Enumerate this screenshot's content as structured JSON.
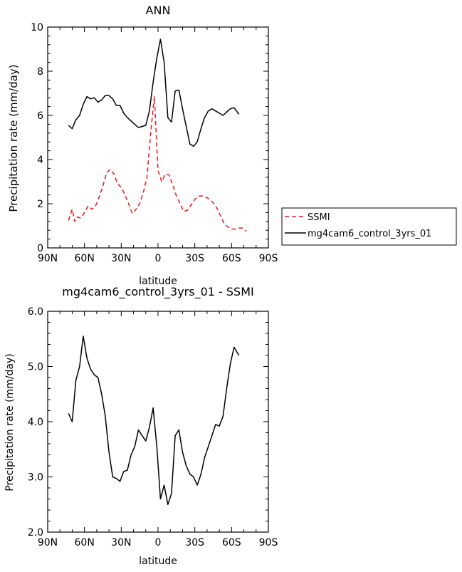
{
  "chart_data": [
    {
      "type": "line",
      "title": "ANN",
      "xlabel": "latitude",
      "ylabel": "Precipitation rate (mm/day)",
      "xlim": [
        90,
        -90
      ],
      "ylim": [
        0,
        10
      ],
      "x_ticks": [
        90,
        60,
        30,
        0,
        -30,
        -60,
        -90
      ],
      "x_tick_labels": [
        "90N",
        "60N",
        "30N",
        "0",
        "30S",
        "60S",
        "90S"
      ],
      "y_ticks": [
        0,
        2,
        4,
        6,
        8,
        10
      ],
      "y_tick_labels": [
        "0",
        "2",
        "4",
        "6",
        "8",
        "10"
      ],
      "legend": [
        "SSMI",
        "mg4cam6_control_3yrs_01"
      ],
      "series": [
        {
          "name": "SSMI",
          "color": "#e8191c",
          "dash": true,
          "x": [
            73,
            70,
            68,
            66,
            63,
            60,
            57,
            54,
            51,
            48,
            45,
            42,
            39,
            36,
            33,
            30,
            27,
            24,
            21,
            18,
            15,
            12,
            9,
            6,
            3,
            0,
            -3,
            -6,
            -9,
            -12,
            -15,
            -18,
            -21,
            -24,
            -27,
            -30,
            -33,
            -36,
            -39,
            -42,
            -45,
            -48,
            -51,
            -54,
            -57,
            -60,
            -63,
            -66,
            -69,
            -72
          ],
          "values": [
            1.25,
            1.75,
            1.2,
            1.4,
            1.35,
            1.6,
            1.9,
            1.75,
            1.9,
            2.3,
            2.8,
            3.4,
            3.55,
            3.35,
            2.9,
            2.75,
            2.4,
            2.0,
            1.55,
            1.75,
            2.0,
            2.5,
            3.2,
            5.2,
            6.85,
            3.5,
            3.0,
            3.35,
            3.3,
            2.85,
            2.35,
            2.0,
            1.65,
            1.7,
            1.95,
            2.2,
            2.35,
            2.35,
            2.3,
            2.2,
            2.05,
            1.8,
            1.45,
            1.1,
            0.95,
            0.85,
            0.85,
            0.9,
            0.9,
            0.75
          ]
        },
        {
          "name": "mg4cam6_control_3yrs_01",
          "color": "#000000",
          "dash": false,
          "x": [
            73,
            70,
            67,
            64,
            61,
            58,
            55,
            52,
            49,
            46,
            43,
            40,
            37,
            34,
            31,
            28,
            25,
            22,
            19,
            16,
            13,
            10,
            7,
            4,
            1,
            -2,
            -5,
            -8,
            -11,
            -14,
            -17,
            -20,
            -23,
            -26,
            -29,
            -32,
            -35,
            -38,
            -41,
            -44,
            -47,
            -50,
            -53,
            -56,
            -59,
            -62,
            -66
          ],
          "values": [
            5.55,
            5.4,
            5.8,
            6.0,
            6.5,
            6.85,
            6.75,
            6.8,
            6.6,
            6.7,
            6.9,
            6.9,
            6.75,
            6.45,
            6.45,
            6.1,
            5.9,
            5.75,
            5.6,
            5.45,
            5.5,
            5.55,
            6.2,
            7.5,
            8.6,
            9.45,
            8.4,
            5.9,
            5.7,
            7.1,
            7.15,
            6.3,
            5.5,
            4.7,
            4.6,
            4.8,
            5.4,
            5.9,
            6.2,
            6.3,
            6.2,
            6.1,
            6.0,
            6.15,
            6.3,
            6.35,
            6.05
          ]
        }
      ]
    },
    {
      "type": "line",
      "title": "mg4cam6_control_3yrs_01 - SSMI",
      "xlabel": "latitude",
      "ylabel": "Precipitation rate (mm/day)",
      "xlim": [
        90,
        -90
      ],
      "ylim": [
        2.0,
        6.0
      ],
      "x_ticks": [
        90,
        60,
        30,
        0,
        -30,
        -60,
        -90
      ],
      "x_tick_labels": [
        "90N",
        "60N",
        "30N",
        "0",
        "30S",
        "60S",
        "90S"
      ],
      "y_ticks": [
        2,
        3,
        4,
        5,
        6
      ],
      "y_tick_labels": [
        "2.0",
        "3.0",
        "4.0",
        "5.0",
        "6.0"
      ],
      "series": [
        {
          "name": "mg4cam6_control_3yrs_01 - SSMI",
          "color": "#000000",
          "dash": false,
          "x": [
            73,
            70,
            67,
            64,
            61,
            58,
            55,
            52,
            49,
            46,
            43,
            40,
            37,
            34,
            31,
            28,
            25,
            22,
            19,
            16,
            13,
            10,
            7,
            4,
            1,
            -2,
            -5,
            -8,
            -11,
            -14,
            -17,
            -20,
            -23,
            -26,
            -29,
            -32,
            -35,
            -38,
            -41,
            -44,
            -47,
            -50,
            -53,
            -56,
            -59,
            -62,
            -66
          ],
          "values": [
            4.15,
            4.0,
            4.75,
            5.0,
            5.55,
            5.15,
            4.95,
            4.85,
            4.8,
            4.5,
            4.1,
            3.45,
            3.0,
            2.97,
            2.92,
            3.1,
            3.12,
            3.4,
            3.55,
            3.85,
            3.75,
            3.65,
            3.9,
            4.25,
            3.55,
            2.6,
            2.85,
            2.5,
            2.7,
            3.75,
            3.85,
            3.45,
            3.2,
            3.05,
            3.0,
            2.85,
            3.05,
            3.35,
            3.55,
            3.75,
            3.95,
            3.92,
            4.1,
            4.6,
            5.05,
            5.35,
            5.2
          ]
        }
      ]
    }
  ]
}
